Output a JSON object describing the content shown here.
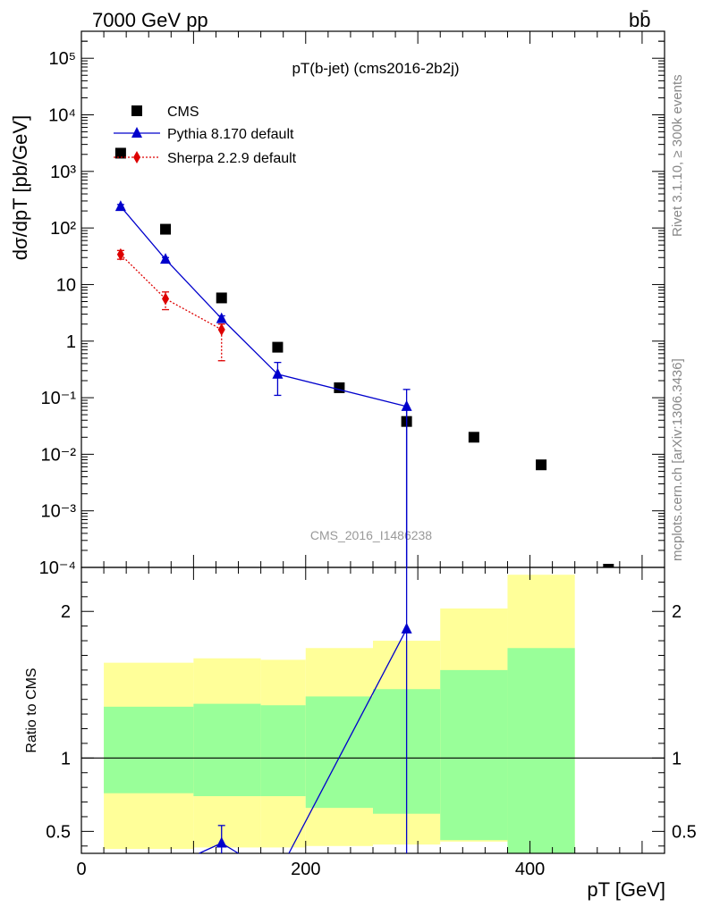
{
  "header": {
    "energy_label": "7000 GeV pp",
    "process_label": "bb̄"
  },
  "side": {
    "rivet_text": "Rivet 3.1.10, ≥ 300k events",
    "mcplots_text": "mcplots.cern.ch [arXiv:1306.3436]"
  },
  "watermark": "CMS_2016_I1486238",
  "chart_data": [
    {
      "type": "scatter",
      "title": "pT(b-jet) (cms2016-2b2j)",
      "ylabel": "dσ/dpT [pb/GeV]",
      "xlabel": "",
      "yscale": "log",
      "xlim": [
        0,
        520
      ],
      "ylim": [
        0.0001,
        300000
      ],
      "ytick_labels": [
        "10^-4",
        "10^-3",
        "10^-2",
        "10^-1",
        "1",
        "10",
        "10^2",
        "10^3",
        "10^4",
        "10^5"
      ],
      "legend_placement": "top-left",
      "series": [
        {
          "name": "CMS",
          "color": "#000000",
          "marker": "square",
          "x": [
            35,
            75,
            125,
            175,
            230,
            290,
            350,
            410,
            470
          ],
          "y": [
            2100,
            95,
            5.8,
            0.78,
            0.15,
            0.038,
            0.02,
            0.0065,
            9e-05
          ]
        },
        {
          "name": "Pythia 8.170 default",
          "color": "#0000cc",
          "marker": "triangle",
          "x": [
            35,
            75,
            125,
            175,
            290
          ],
          "y": [
            240,
            28,
            2.5,
            0.26,
            0.07
          ],
          "err_low": [
            220,
            26,
            2.2,
            0.11,
            1e-05
          ],
          "err_high": [
            260,
            30,
            2.8,
            0.42,
            0.14
          ]
        },
        {
          "name": "Sherpa 2.2.9 default",
          "color": "#dd0000",
          "marker": "diamond",
          "x": [
            35,
            75,
            125
          ],
          "y": [
            34,
            5.6,
            1.6
          ],
          "err_low": [
            28,
            3.6,
            0.45
          ],
          "err_high": [
            40,
            7.4,
            2.0
          ]
        }
      ]
    },
    {
      "type": "line",
      "title": "",
      "ylabel": "Ratio to CMS",
      "xlabel": "pT [GeV]",
      "xlim": [
        0,
        520
      ],
      "ylim": [
        0.35,
        2.3
      ],
      "x_ticks": [
        0,
        200,
        400
      ],
      "y_ticks": [
        0.5,
        1,
        2
      ],
      "reference_line": 1,
      "bands": {
        "edges": [
          20,
          100,
          160,
          200,
          260,
          320,
          380,
          440
        ],
        "yellow_low": [
          0.38,
          0.39,
          0.39,
          0.4,
          0.41,
          0.43,
          0.35
        ],
        "yellow_high": [
          1.65,
          1.68,
          1.67,
          1.75,
          1.8,
          2.02,
          2.25
        ],
        "green_low": [
          0.76,
          0.74,
          0.74,
          0.66,
          0.62,
          0.44,
          0.35
        ],
        "green_high": [
          1.35,
          1.37,
          1.36,
          1.42,
          1.47,
          1.6,
          1.75
        ]
      },
      "series": [
        {
          "name": "Pythia 8.170 default",
          "color": "#0000cc",
          "x": [
            125,
            290
          ],
          "y": [
            0.42,
            1.88
          ],
          "err_low": [
            0.3,
            0.3
          ],
          "err_high": [
            0.54,
            2.3
          ]
        }
      ]
    }
  ]
}
